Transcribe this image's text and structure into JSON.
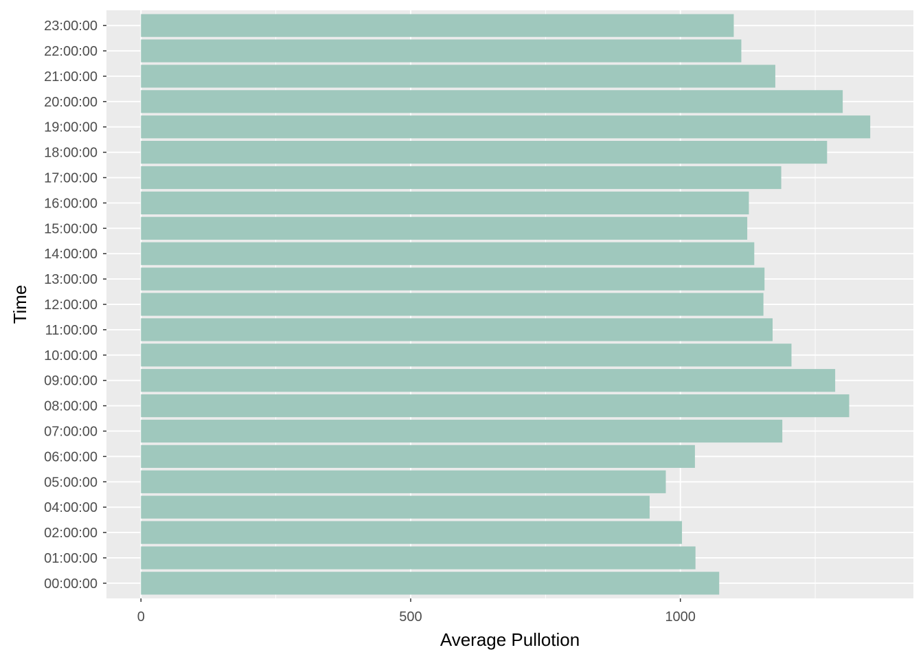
{
  "chart_data": {
    "type": "bar",
    "orientation": "horizontal",
    "title": "",
    "xlabel": "Average Pullotion",
    "ylabel": "Time",
    "xlim": [
      -64,
      1432
    ],
    "x_ticks": [
      0,
      500,
      1000
    ],
    "grid": true,
    "legend": "none",
    "colors": {
      "panel_background": "#ebebeb",
      "grid_major": "#ffffff",
      "bar_fill": "#9fc8bd",
      "tick_text": "#4d4d4d",
      "axis_title": "#000000"
    },
    "categories": [
      "00:00:00",
      "01:00:00",
      "02:00:00",
      "04:00:00",
      "05:00:00",
      "06:00:00",
      "07:00:00",
      "08:00:00",
      "09:00:00",
      "10:00:00",
      "11:00:00",
      "12:00:00",
      "13:00:00",
      "14:00:00",
      "15:00:00",
      "16:00:00",
      "17:00:00",
      "18:00:00",
      "19:00:00",
      "20:00:00",
      "21:00:00",
      "22:00:00",
      "23:00:00"
    ],
    "values": [
      1072,
      1028,
      1003,
      943,
      973,
      1027,
      1189,
      1313,
      1287,
      1206,
      1171,
      1154,
      1156,
      1137,
      1124,
      1127,
      1187,
      1272,
      1352,
      1301,
      1176,
      1113,
      1099
    ]
  }
}
